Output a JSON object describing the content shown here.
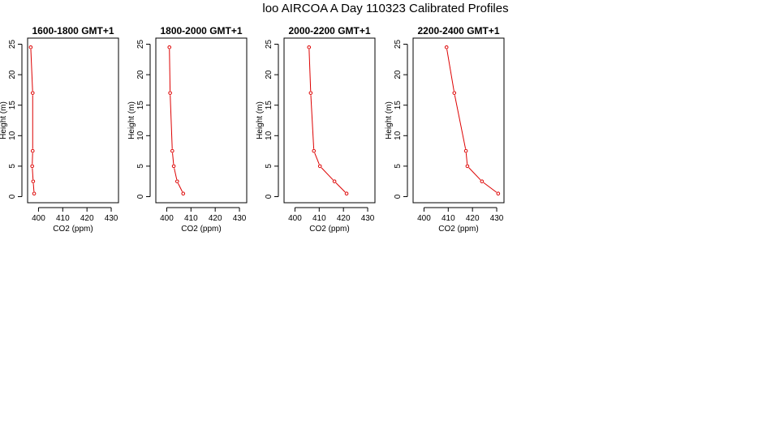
{
  "page": {
    "title": "loo AIRCOA A  Day 110323  Calibrated Profiles"
  },
  "chart_data": [
    {
      "type": "line",
      "title": "1600-1800 GMT+1",
      "xlabel": "CO2 (ppm)",
      "ylabel": "Height (m)",
      "xlim": [
        395.5,
        433
      ],
      "ylim": [
        -1,
        26
      ],
      "xticks": [
        400,
        410,
        420,
        430
      ],
      "yticks": [
        0,
        5,
        10,
        15,
        20,
        25
      ],
      "series": [
        {
          "color": "#dd0000",
          "x": [
            398.2,
            397.8,
            397.4,
            397.6,
            397.6,
            396.8
          ],
          "y": [
            0.5,
            2.5,
            5,
            7.5,
            17,
            24.5
          ]
        }
      ]
    },
    {
      "type": "line",
      "title": "1800-2000 GMT+1",
      "xlabel": "CO2 (ppm)",
      "ylabel": "Height (m)",
      "xlim": [
        395.5,
        433
      ],
      "ylim": [
        -1,
        26
      ],
      "xticks": [
        400,
        410,
        420,
        430
      ],
      "yticks": [
        0,
        5,
        10,
        15,
        20,
        25
      ],
      "series": [
        {
          "color": "#dd0000",
          "x": [
            406.8,
            404.3,
            402.9,
            402.3,
            401.4,
            401.1
          ],
          "y": [
            0.5,
            2.5,
            5,
            7.5,
            17,
            24.5
          ]
        }
      ]
    },
    {
      "type": "line",
      "title": "2000-2200 GMT+1",
      "xlabel": "CO2 (ppm)",
      "ylabel": "Height (m)",
      "xlim": [
        395.5,
        433
      ],
      "ylim": [
        -1,
        26
      ],
      "xticks": [
        400,
        410,
        420,
        430
      ],
      "yticks": [
        0,
        5,
        10,
        15,
        20,
        25
      ],
      "series": [
        {
          "color": "#dd0000",
          "x": [
            421.3,
            416.3,
            410.3,
            407.8,
            406.5,
            405.8
          ],
          "y": [
            0.5,
            2.5,
            5,
            7.5,
            17,
            24.5
          ]
        }
      ]
    },
    {
      "type": "line",
      "title": "2200-2400 GMT+1",
      "xlabel": "CO2 (ppm)",
      "ylabel": "Height (m)",
      "xlim": [
        395.5,
        433
      ],
      "ylim": [
        -1,
        26
      ],
      "xticks": [
        400,
        410,
        420,
        430
      ],
      "yticks": [
        0,
        5,
        10,
        15,
        20,
        25
      ],
      "series": [
        {
          "color": "#dd0000",
          "x": [
            430.6,
            423.9,
            417.9,
            417.3,
            412.5,
            409.3
          ],
          "y": [
            0.5,
            2.5,
            5,
            7.5,
            17,
            24.5
          ]
        }
      ]
    }
  ]
}
